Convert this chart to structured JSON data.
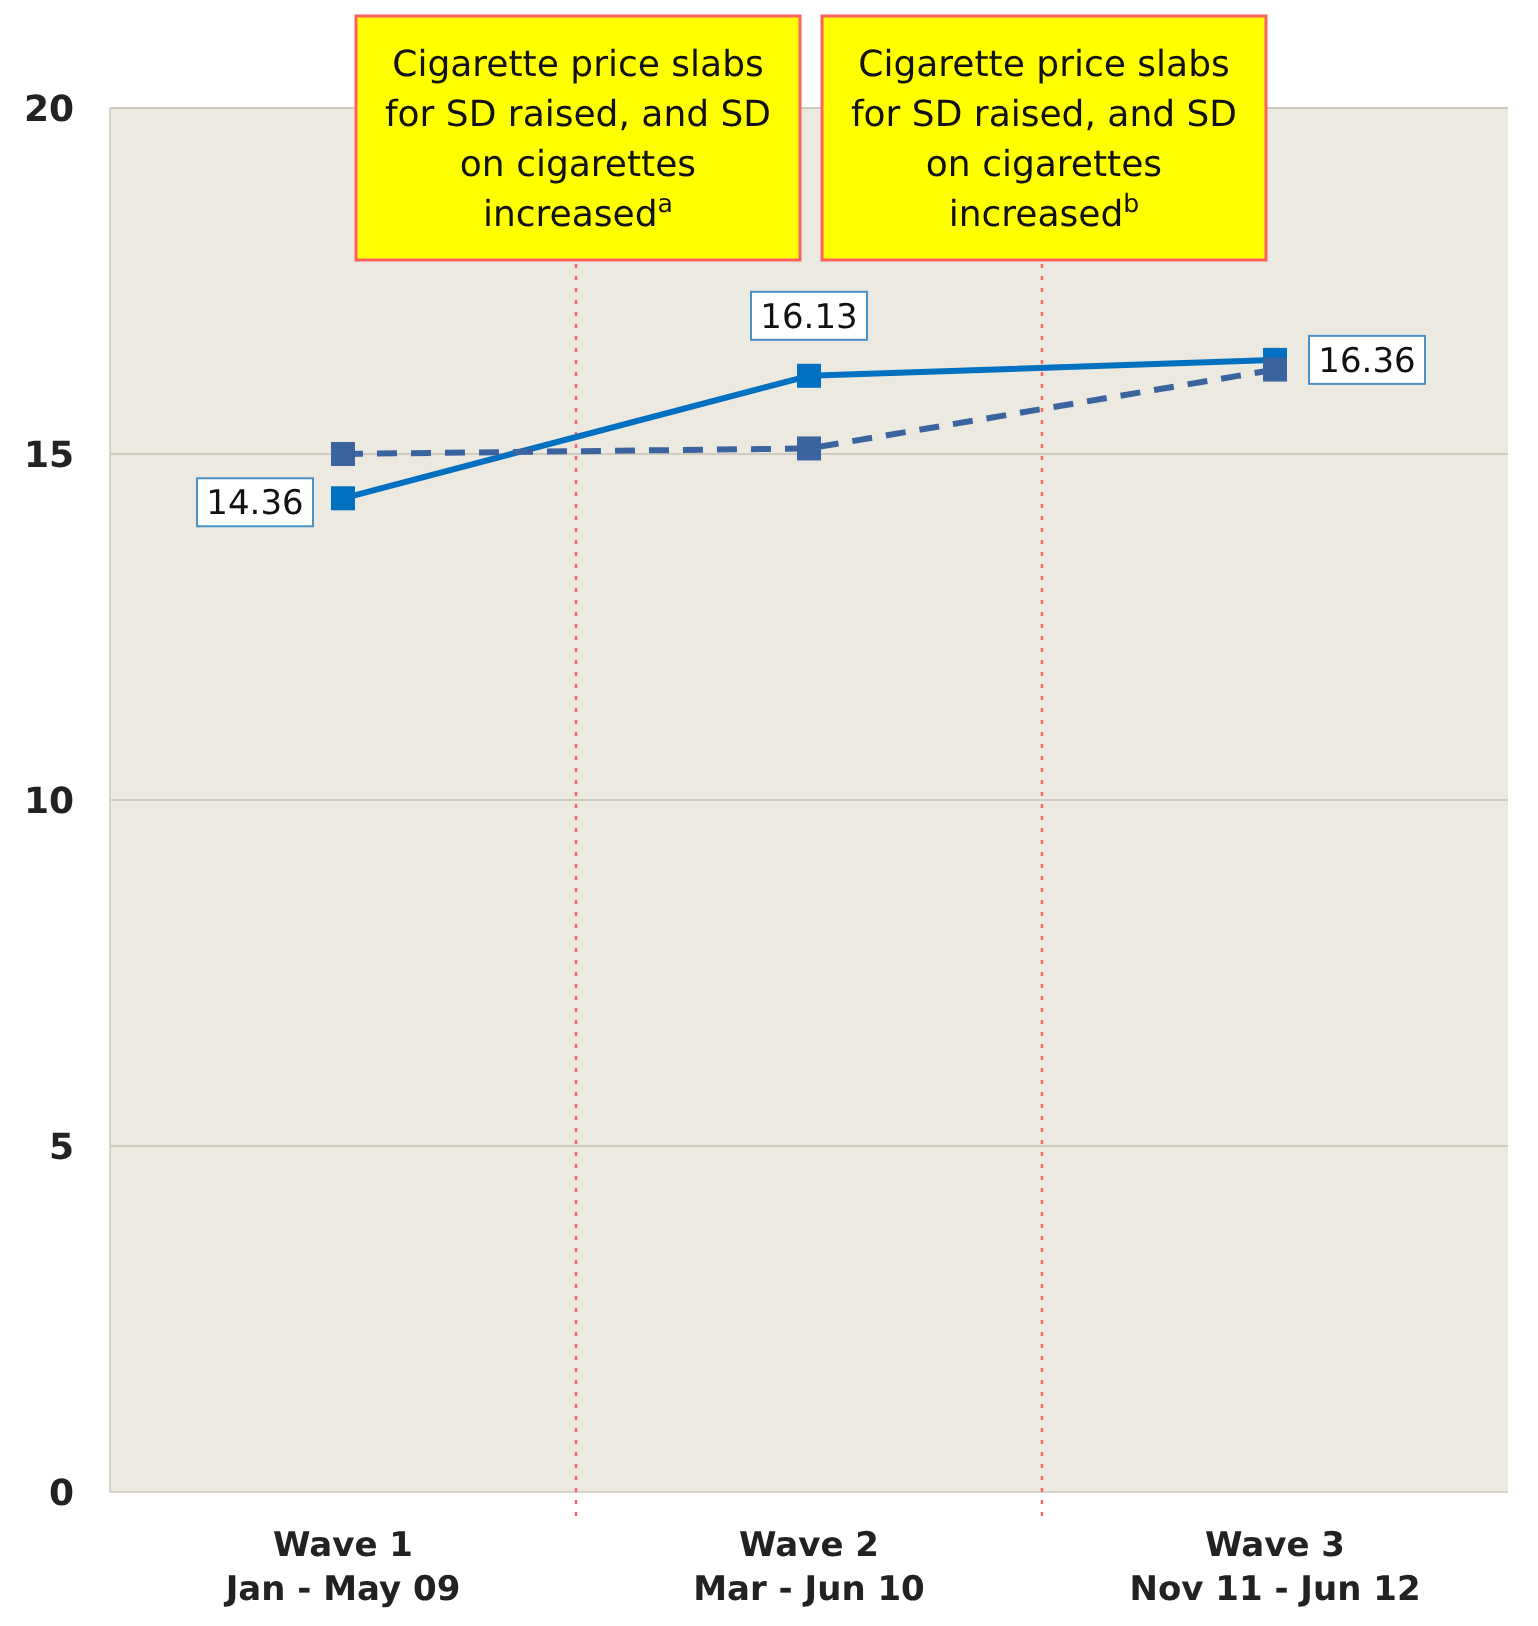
{
  "chart_data": {
    "type": "line",
    "categories": [
      "Wave 1\nJan - May 09",
      "Wave 2\nMar - Jun 10",
      "Wave 3\nNov 11 - Jun 12"
    ],
    "series": [
      {
        "color": "#0070c0",
        "values": [
          14.36,
          16.13,
          16.36
        ],
        "value_labels": [
          "14.36",
          "16.13",
          "16.36"
        ],
        "line_style": "solid"
      },
      {
        "color": "#3a64a0",
        "values": [
          15.0,
          15.08,
          16.22
        ],
        "line_style": "dashed"
      }
    ],
    "ylim": [
      0,
      20
    ],
    "yticks": [
      0,
      5,
      10,
      15,
      20
    ],
    "grid": "y",
    "marker": "square",
    "annotations": [
      "Cigarette price slabs\nfor SD raised, and SD\non cigarettes\nincreased$^{a}$",
      "Cigarette price slabs\nfor SD raised, and SD\non cigarettes\nincreased$^{b}$"
    ]
  }
}
